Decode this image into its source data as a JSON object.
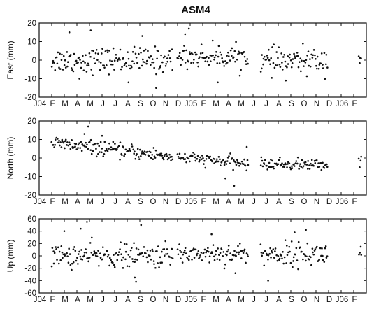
{
  "chart_data": {
    "title": "ASM4",
    "type": "scatter",
    "x_unit": "month index from Jan 2004 (0 = Jan 2004)",
    "x_range": [
      0,
      26
    ],
    "month_tick_labels": [
      "J04",
      "F",
      "M",
      "A",
      "M",
      "J",
      "J",
      "A",
      "S",
      "O",
      "N",
      "D",
      "J05",
      "F",
      "M",
      "A",
      "M",
      "J",
      "J",
      "A",
      "S",
      "O",
      "N",
      "D",
      "J06",
      "F"
    ],
    "panels": [
      {
        "name": "East",
        "ylabel": "East (mm)",
        "ylim": [
          -20,
          20
        ],
        "yticks": [
          -20,
          -10,
          0,
          10,
          20
        ],
        "grid": false,
        "segments": [
          {
            "x_start": 1.0,
            "x_end": 10.6,
            "mean": 0,
            "spread": 4,
            "trend": 0
          },
          {
            "x_start": 11.0,
            "x_end": 16.6,
            "mean": 2,
            "spread": 3.5,
            "trend": 0
          },
          {
            "x_start": 17.6,
            "x_end": 22.9,
            "mean": -1,
            "spread": 4,
            "trend": 0.15
          },
          {
            "x_start": 25.4,
            "x_end": 25.6,
            "mean": 2,
            "spread": 4,
            "trend": 0
          }
        ],
        "outliers": [
          {
            "x": 2.4,
            "y": 15
          },
          {
            "x": 4.1,
            "y": 16
          },
          {
            "x": 11.6,
            "y": 14
          },
          {
            "x": 11.9,
            "y": 17
          },
          {
            "x": 8.2,
            "y": 13
          },
          {
            "x": 9.3,
            "y": -15
          },
          {
            "x": 14.2,
            "y": -12
          },
          {
            "x": 19.6,
            "y": -11
          },
          {
            "x": 3.2,
            "y": -10
          },
          {
            "x": 7.1,
            "y": -12
          }
        ]
      },
      {
        "name": "North",
        "ylabel": "North (mm)",
        "ylim": [
          -20,
          20
        ],
        "yticks": [
          -20,
          -10,
          0,
          10,
          20
        ],
        "grid": false,
        "segments": [
          {
            "x_start": 1.0,
            "x_end": 10.6,
            "mean": 8,
            "spread": 2.2,
            "trend": -0.75
          },
          {
            "x_start": 11.0,
            "x_end": 16.6,
            "mean": 0.5,
            "spread": 1.8,
            "trend": -0.65
          },
          {
            "x_start": 17.6,
            "x_end": 22.9,
            "mean": -3.2,
            "spread": 1.8,
            "trend": -0.1
          },
          {
            "x_start": 25.4,
            "x_end": 25.6,
            "mean": -1.5,
            "spread": 2,
            "trend": 0
          }
        ],
        "outliers": [
          {
            "x": 3.9,
            "y": 17
          },
          {
            "x": 3.6,
            "y": 13
          },
          {
            "x": 5.0,
            "y": 12
          },
          {
            "x": 15.5,
            "y": -15
          },
          {
            "x": 14.8,
            "y": -11
          },
          {
            "x": 16.5,
            "y": 6
          }
        ]
      },
      {
        "name": "Up",
        "ylabel": "Up (mm)",
        "ylim": [
          -60,
          60
        ],
        "yticks": [
          -60,
          -40,
          -20,
          0,
          20,
          40,
          60
        ],
        "grid": false,
        "segments": [
          {
            "x_start": 1.0,
            "x_end": 10.6,
            "mean": 0,
            "spread": 11,
            "trend": 0
          },
          {
            "x_start": 11.0,
            "x_end": 16.6,
            "mean": 4,
            "spread": 10,
            "trend": 0
          },
          {
            "x_start": 17.6,
            "x_end": 22.9,
            "mean": 3,
            "spread": 11,
            "trend": 0
          },
          {
            "x_start": 25.4,
            "x_end": 25.6,
            "mean": 5,
            "spread": 10,
            "trend": 0
          }
        ],
        "outliers": [
          {
            "x": 2.0,
            "y": 40
          },
          {
            "x": 3.3,
            "y": 44
          },
          {
            "x": 3.8,
            "y": 55
          },
          {
            "x": 8.1,
            "y": 50
          },
          {
            "x": 7.6,
            "y": -35
          },
          {
            "x": 7.7,
            "y": -42
          },
          {
            "x": 18.2,
            "y": -40
          },
          {
            "x": 20.3,
            "y": 38
          },
          {
            "x": 21.2,
            "y": 42
          },
          {
            "x": 13.7,
            "y": 35
          },
          {
            "x": 15.6,
            "y": -28
          }
        ]
      }
    ]
  }
}
